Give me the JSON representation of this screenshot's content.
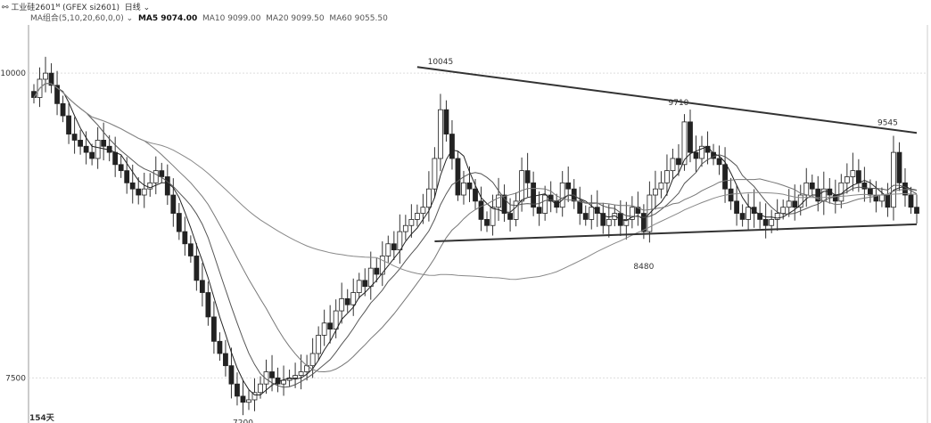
{
  "header": {
    "icon": "link-icon",
    "title": "工业硅2601ᴹ (GFEX si2601)",
    "period": "日线"
  },
  "ma_bar": {
    "label": "MA组合(5,10,20,60,0,0)",
    "ma5": "MA5 9074.00",
    "ma10": "MA10 9099.00",
    "ma20": "MA20 9099.50",
    "ma60": "MA60 9055.50"
  },
  "footer": {
    "days": "154天"
  },
  "chart_data": {
    "type": "candlestick",
    "ylim": [
      7130,
      10600
    ],
    "yticks": [
      {
        "value": 10000,
        "label": "10000"
      },
      {
        "value": 7500,
        "label": "7500"
      }
    ],
    "grid": true,
    "closes": [
      9800,
      9950,
      10000,
      9900,
      9750,
      9650,
      9500,
      9450,
      9400,
      9350,
      9300,
      9450,
      9400,
      9350,
      9250,
      9200,
      9100,
      9050,
      9000,
      9050,
      9100,
      9200,
      9150,
      9000,
      8850,
      8700,
      8600,
      8500,
      8300,
      8200,
      8000,
      7800,
      7700,
      7600,
      7450,
      7350,
      7300,
      7320,
      7380,
      7450,
      7550,
      7500,
      7450,
      7480,
      7500,
      7520,
      7550,
      7600,
      7700,
      7850,
      7950,
      7900,
      8050,
      8150,
      8100,
      8200,
      8300,
      8250,
      8400,
      8350,
      8500,
      8600,
      8550,
      8700,
      8750,
      8800,
      8850,
      8900,
      9050,
      9300,
      9700,
      9500,
      9300,
      9000,
      9100,
      9050,
      8950,
      8800,
      8750,
      8900,
      9000,
      8850,
      8800,
      8950,
      9200,
      9100,
      8900,
      8850,
      9000,
      8950,
      8900,
      9100,
      9050,
      8950,
      8850,
      8800,
      8900,
      8850,
      8750,
      8800,
      8850,
      8750,
      8800,
      8900,
      8850,
      8700,
      9000,
      9050,
      9100,
      9200,
      9300,
      9250,
      9600,
      9350,
      9300,
      9400,
      9350,
      9300,
      9250,
      9050,
      8950,
      8850,
      8800,
      8900,
      8850,
      8800,
      8750,
      8800,
      8850,
      8900,
      8950,
      8900,
      9000,
      9100,
      9050,
      8950,
      9050,
      9000,
      8950,
      9100,
      9150,
      9200,
      9100,
      9050,
      9000,
      8950,
      9000,
      8900,
      9350,
      9100,
      9000,
      8900,
      8850
    ],
    "moving_averages": [
      5,
      10,
      20,
      60
    ],
    "trendlines": [
      {
        "from": [
          66,
          10050
        ],
        "to": [
          152,
          9510
        ]
      },
      {
        "from": [
          69,
          8620
        ],
        "to": [
          152,
          8760
        ]
      }
    ],
    "annotations": [
      {
        "day": 70,
        "price": 10045,
        "label": "10045"
      },
      {
        "day": 111,
        "price": 9710,
        "label": "9710"
      },
      {
        "day": 105,
        "price": 8480,
        "label": "8480"
      },
      {
        "day": 147,
        "price": 9545,
        "label": "9545"
      },
      {
        "day": 36,
        "price": 7200,
        "label": "7200"
      }
    ]
  }
}
